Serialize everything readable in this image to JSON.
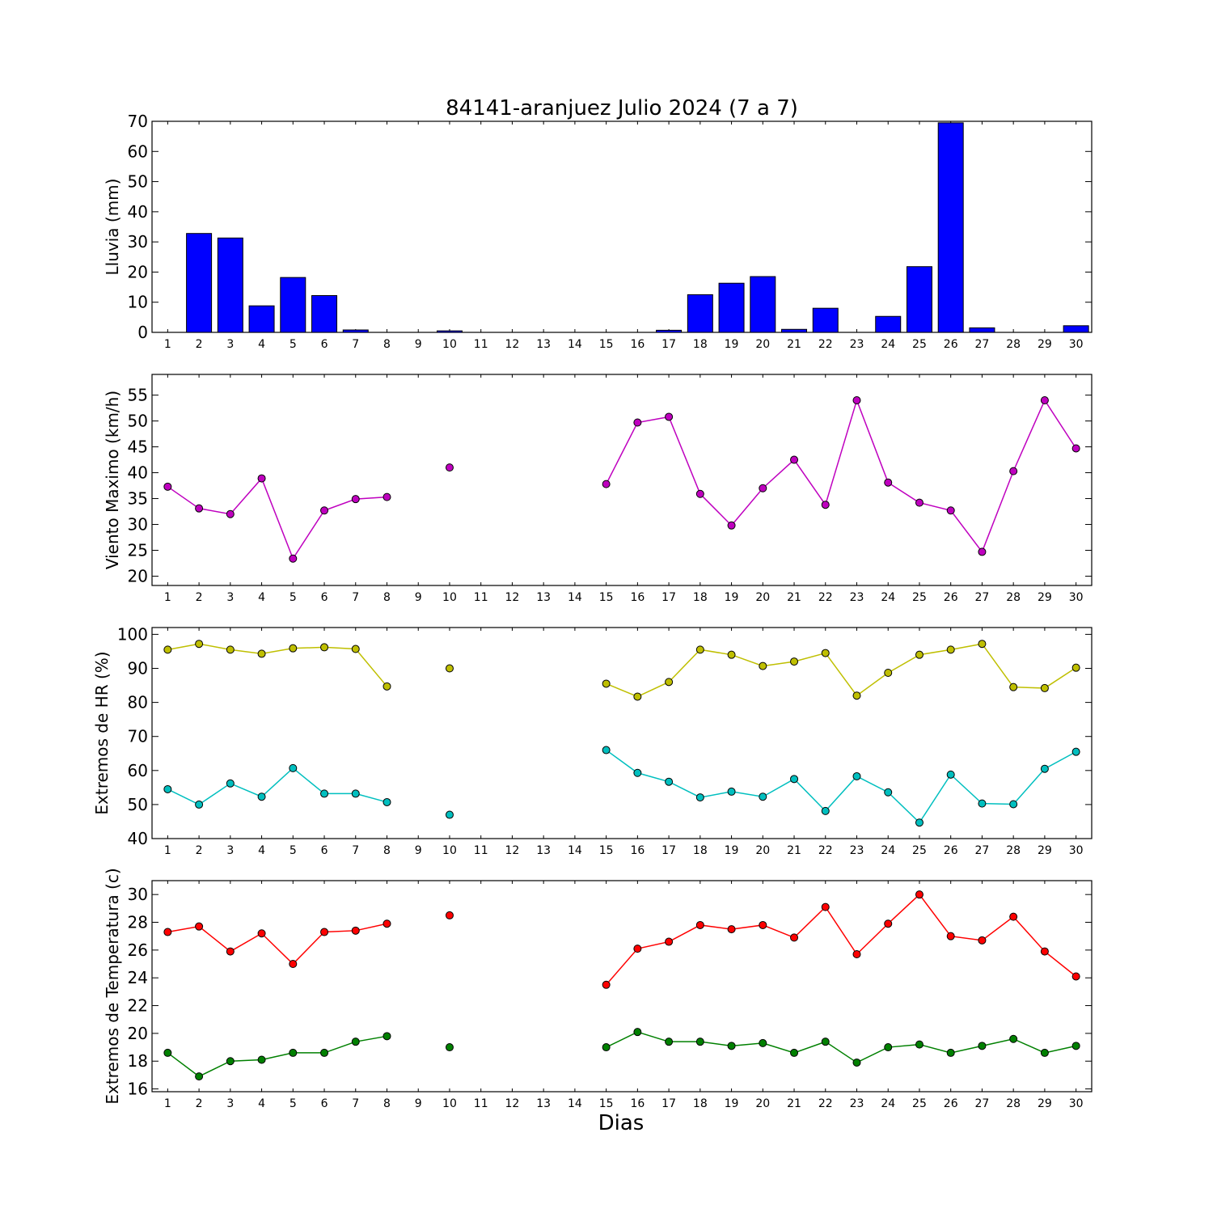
{
  "title": "84141-aranjuez Julio 2024  (7 a 7)",
  "xlabel": "Dias",
  "chart_data": [
    {
      "type": "bar",
      "ylabel": "Lluvia (mm)",
      "ylim": [
        0,
        70
      ],
      "yticks": [
        0,
        10,
        20,
        30,
        40,
        50,
        60,
        70
      ],
      "xticks": [
        1,
        2,
        3,
        4,
        5,
        6,
        7,
        8,
        9,
        10,
        11,
        12,
        13,
        14,
        15,
        16,
        17,
        18,
        19,
        20,
        21,
        22,
        23,
        24,
        25,
        26,
        27,
        28,
        29,
        30
      ],
      "colors": {
        "bar": "#0000ff"
      },
      "series": [
        {
          "x": [
            1,
            2,
            3,
            4,
            5,
            6,
            7,
            8,
            9,
            10,
            11,
            12,
            13,
            14,
            15,
            16,
            17,
            18,
            19,
            20,
            21,
            22,
            23,
            24,
            25,
            26,
            27,
            28,
            29,
            30
          ],
          "values": [
            0,
            32.8,
            31.3,
            8.8,
            18.2,
            12.2,
            0.8,
            0,
            0,
            0.5,
            0,
            0,
            0,
            0,
            0,
            0,
            0.7,
            12.5,
            16.3,
            18.5,
            1.0,
            8.0,
            0,
            5.3,
            21.8,
            69.5,
            1.5,
            0,
            0,
            2.2
          ]
        }
      ]
    },
    {
      "type": "line",
      "ylabel": "Viento Maximo (km/h)",
      "ylim": [
        18.2,
        59.0
      ],
      "yticks": [
        20,
        25,
        30,
        35,
        40,
        45,
        50,
        55
      ],
      "xticks": [
        1,
        2,
        3,
        4,
        5,
        6,
        7,
        8,
        9,
        10,
        11,
        12,
        13,
        14,
        15,
        16,
        17,
        18,
        19,
        20,
        21,
        22,
        23,
        24,
        25,
        26,
        27,
        28,
        29,
        30
      ],
      "colors": {
        "line": "#bf00bf"
      },
      "series": [
        {
          "x": [
            1,
            2,
            3,
            4,
            5,
            6,
            7,
            8,
            9,
            10,
            11,
            12,
            13,
            14,
            15,
            16,
            17,
            18,
            19,
            20,
            21,
            22,
            23,
            24,
            25,
            26,
            27,
            28,
            29,
            30
          ],
          "values": [
            37.3,
            33.1,
            32.0,
            38.9,
            23.4,
            32.7,
            34.9,
            35.3,
            null,
            41.0,
            null,
            null,
            null,
            null,
            37.8,
            49.7,
            50.8,
            35.9,
            29.8,
            37.0,
            42.5,
            33.8,
            54.0,
            38.1,
            34.2,
            32.7,
            24.7,
            40.3,
            54.0,
            44.7
          ]
        }
      ]
    },
    {
      "type": "line",
      "ylabel": "Extremos de HR (%)",
      "ylim": [
        40,
        102
      ],
      "yticks": [
        40,
        50,
        60,
        70,
        80,
        90,
        100
      ],
      "xticks": [
        1,
        2,
        3,
        4,
        5,
        6,
        7,
        8,
        9,
        10,
        11,
        12,
        13,
        14,
        15,
        16,
        17,
        18,
        19,
        20,
        21,
        22,
        23,
        24,
        25,
        26,
        27,
        28,
        29,
        30
      ],
      "colors": {
        "max": "#bfbf00",
        "min": "#00bfbf"
      },
      "series": [
        {
          "x": [
            1,
            2,
            3,
            4,
            5,
            6,
            7,
            8,
            9,
            10,
            11,
            12,
            13,
            14,
            15,
            16,
            17,
            18,
            19,
            20,
            21,
            22,
            23,
            24,
            25,
            26,
            27,
            28,
            29,
            30
          ],
          "values": [
            95.5,
            97.2,
            95.5,
            94.3,
            95.9,
            96.2,
            95.7,
            84.7,
            null,
            90.0,
            null,
            null,
            null,
            null,
            85.5,
            81.7,
            86.0,
            95.5,
            94.0,
            90.7,
            92.0,
            94.5,
            82.0,
            88.7,
            94.0,
            95.5,
            97.2,
            84.5,
            84.2,
            90.2
          ]
        },
        {
          "x": [
            1,
            2,
            3,
            4,
            5,
            6,
            7,
            8,
            9,
            10,
            11,
            12,
            13,
            14,
            15,
            16,
            17,
            18,
            19,
            20,
            21,
            22,
            23,
            24,
            25,
            26,
            27,
            28,
            29,
            30
          ],
          "values": [
            54.5,
            50.0,
            56.2,
            52.3,
            60.7,
            53.2,
            53.2,
            50.7,
            null,
            47.0,
            null,
            null,
            null,
            null,
            66.0,
            59.3,
            56.7,
            52.1,
            53.8,
            52.3,
            57.5,
            48.1,
            58.3,
            53.6,
            44.7,
            58.8,
            50.3,
            50.1,
            60.5,
            65.5
          ]
        }
      ]
    },
    {
      "type": "line",
      "ylabel": "Extremos de Temperatura (c)",
      "ylim": [
        15.8,
        31.0
      ],
      "yticks": [
        16,
        18,
        20,
        22,
        24,
        26,
        28,
        30
      ],
      "xticks": [
        1,
        2,
        3,
        4,
        5,
        6,
        7,
        8,
        9,
        10,
        11,
        12,
        13,
        14,
        15,
        16,
        17,
        18,
        19,
        20,
        21,
        22,
        23,
        24,
        25,
        26,
        27,
        28,
        29,
        30
      ],
      "colors": {
        "max": "#ff0000",
        "min": "#008000"
      },
      "series": [
        {
          "x": [
            1,
            2,
            3,
            4,
            5,
            6,
            7,
            8,
            9,
            10,
            11,
            12,
            13,
            14,
            15,
            16,
            17,
            18,
            19,
            20,
            21,
            22,
            23,
            24,
            25,
            26,
            27,
            28,
            29,
            30
          ],
          "values": [
            27.3,
            27.7,
            25.9,
            27.2,
            25.0,
            27.3,
            27.4,
            27.9,
            null,
            28.5,
            null,
            null,
            null,
            null,
            23.5,
            26.1,
            26.6,
            27.8,
            27.5,
            27.8,
            26.9,
            29.1,
            25.7,
            27.9,
            30.0,
            27.0,
            26.7,
            28.4,
            25.9,
            24.1
          ]
        },
        {
          "x": [
            1,
            2,
            3,
            4,
            5,
            6,
            7,
            8,
            9,
            10,
            11,
            12,
            13,
            14,
            15,
            16,
            17,
            18,
            19,
            20,
            21,
            22,
            23,
            24,
            25,
            26,
            27,
            28,
            29,
            30
          ],
          "values": [
            18.6,
            16.9,
            18.0,
            18.1,
            18.6,
            18.6,
            19.4,
            19.8,
            null,
            19.0,
            null,
            null,
            null,
            null,
            19.0,
            20.1,
            19.4,
            19.4,
            19.1,
            19.3,
            18.6,
            19.4,
            17.9,
            19.0,
            19.2,
            18.6,
            19.1,
            19.6,
            18.6,
            19.1
          ]
        }
      ]
    }
  ]
}
